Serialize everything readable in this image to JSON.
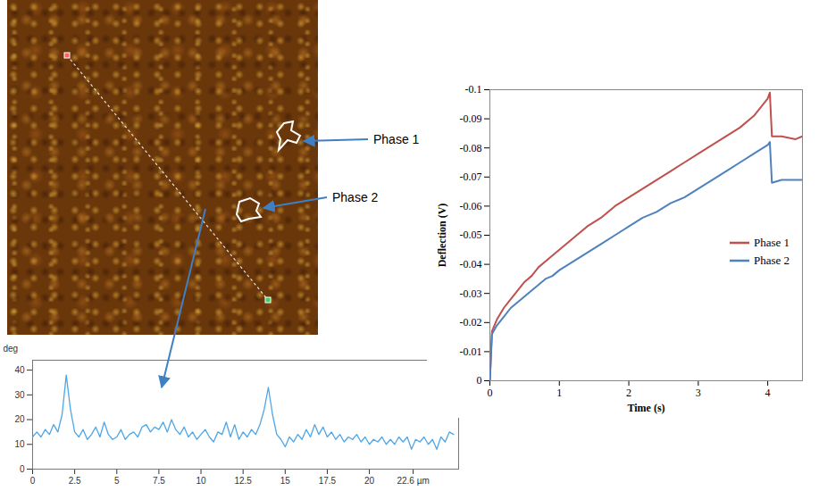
{
  "chart_data": [
    {
      "type": "line",
      "y_label": "deg",
      "color": "#4da6e8",
      "grid": false,
      "x": [
        0,
        0.25,
        0.5,
        0.75,
        1,
        1.25,
        1.5,
        1.75,
        2,
        2.25,
        2.5,
        2.75,
        3,
        3.25,
        3.5,
        3.75,
        4,
        4.25,
        4.5,
        4.75,
        5,
        5.25,
        5.5,
        5.75,
        6,
        6.25,
        6.5,
        6.75,
        7,
        7.25,
        7.5,
        7.75,
        8,
        8.25,
        8.5,
        8.75,
        9,
        9.25,
        9.5,
        9.75,
        10,
        10.25,
        10.5,
        10.75,
        11,
        11.25,
        11.5,
        11.75,
        12,
        12.25,
        12.5,
        12.75,
        13,
        13.25,
        13.5,
        13.75,
        14,
        14.25,
        14.5,
        14.75,
        15,
        15.25,
        15.5,
        15.75,
        16,
        16.25,
        16.5,
        16.75,
        17,
        17.25,
        17.5,
        17.75,
        18,
        18.25,
        18.5,
        18.75,
        19,
        19.25,
        19.5,
        19.75,
        20,
        20.25,
        20.5,
        20.75,
        21,
        21.25,
        21.5,
        21.75,
        22,
        22.25,
        22.5,
        22.75,
        23,
        23.25,
        23.5,
        23.75,
        24,
        24.25,
        24.5,
        24.75,
        25
      ],
      "values": [
        13,
        15,
        13,
        16,
        14,
        18,
        15,
        22,
        38,
        24,
        15,
        13,
        16,
        12,
        14,
        17,
        13,
        19,
        14,
        12,
        13,
        16,
        12,
        14,
        15,
        13,
        17,
        18,
        15,
        17,
        16,
        19,
        15,
        20,
        16,
        14,
        17,
        13,
        15,
        12,
        14,
        16,
        13,
        11,
        15,
        14,
        19,
        13,
        18,
        12,
        15,
        13,
        16,
        14,
        18,
        24,
        33,
        22,
        14,
        12,
        9,
        13,
        11,
        14,
        12,
        16,
        13,
        18,
        14,
        17,
        13,
        15,
        12,
        14,
        11,
        13,
        12,
        14,
        11,
        13,
        10,
        12,
        11,
        13,
        10,
        12,
        10,
        13,
        11,
        13,
        8,
        12,
        11,
        13,
        10,
        12,
        8,
        13,
        11,
        15,
        14
      ],
      "xlim": [
        0,
        25.3
      ],
      "xticks": [
        0,
        2.5,
        5,
        7.5,
        10,
        12.5,
        15,
        17.5,
        20,
        {
          "value": 22.6,
          "label": "22.6 µm"
        }
      ],
      "ylim": [
        0,
        44
      ],
      "yticks": [
        0,
        10,
        20,
        30,
        40
      ]
    },
    {
      "type": "line",
      "x_label": "Time (s)",
      "y_label": "Deflection (V)",
      "grid": false,
      "legend": "right",
      "x": [
        0,
        0.03,
        0.1,
        0.2,
        0.3,
        0.4,
        0.5,
        0.6,
        0.7,
        0.8,
        0.9,
        1.0,
        1.2,
        1.4,
        1.6,
        1.8,
        2.0,
        2.2,
        2.4,
        2.6,
        2.8,
        3.0,
        3.2,
        3.4,
        3.6,
        3.8,
        4.0,
        4.03,
        4.06,
        4.2,
        4.4,
        4.5
      ],
      "series": [
        {
          "name": "Phase 1",
          "color": "#c0504d",
          "values": [
            0,
            -0.017,
            -0.021,
            -0.025,
            -0.028,
            -0.031,
            -0.034,
            -0.036,
            -0.039,
            -0.041,
            -0.043,
            -0.045,
            -0.049,
            -0.053,
            -0.056,
            -0.06,
            -0.063,
            -0.066,
            -0.069,
            -0.072,
            -0.075,
            -0.078,
            -0.081,
            -0.084,
            -0.087,
            -0.091,
            -0.097,
            -0.099,
            -0.084,
            -0.084,
            -0.083,
            -0.084
          ]
        },
        {
          "name": "Phase 2",
          "color": "#4f81bd",
          "values": [
            0,
            -0.016,
            -0.019,
            -0.022,
            -0.025,
            -0.027,
            -0.029,
            -0.031,
            -0.033,
            -0.035,
            -0.036,
            -0.038,
            -0.041,
            -0.044,
            -0.047,
            -0.05,
            -0.053,
            -0.056,
            -0.058,
            -0.061,
            -0.063,
            -0.066,
            -0.069,
            -0.072,
            -0.075,
            -0.078,
            -0.081,
            -0.082,
            -0.068,
            -0.069,
            -0.069,
            -0.069
          ]
        }
      ],
      "xlim": [
        0,
        4.5
      ],
      "xticks": [
        0,
        1,
        2,
        3,
        4
      ],
      "ylim": [
        0,
        -0.1
      ],
      "yticks": [
        0,
        -0.01,
        -0.02,
        -0.03,
        -0.04,
        -0.05,
        -0.06,
        -0.07,
        -0.08,
        -0.09,
        -0.1
      ]
    }
  ],
  "image": {
    "labels": [
      "Phase 1",
      "Phase 2"
    ]
  }
}
